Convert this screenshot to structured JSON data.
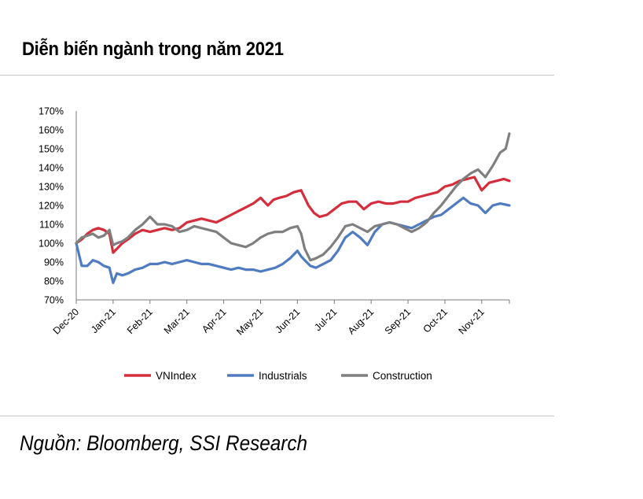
{
  "page": {
    "title": "Diễn biến ngành trong năm 2021",
    "source": "Nguồn: Bloomberg, SSI Research"
  },
  "colors": {
    "vnindex": "#d42e3c",
    "industrials": "#4f7bc1",
    "construction": "#7f7f7f",
    "axis": "#7a7a7a",
    "rule": "#c8c8c8"
  },
  "chart_data": {
    "type": "line",
    "title": "Diễn biến ngành trong năm 2021",
    "xlabel": "",
    "ylabel": "",
    "ylim": [
      70,
      170
    ],
    "y_ticks": [
      70,
      80,
      90,
      100,
      110,
      120,
      130,
      140,
      150,
      160,
      170
    ],
    "y_tick_labels": [
      "70%",
      "80%",
      "90%",
      "100%",
      "110%",
      "120%",
      "130%",
      "140%",
      "150%",
      "160%",
      "170%"
    ],
    "x_tick_labels": [
      "Dec-20",
      "Jan-21",
      "Feb-21",
      "Mar-21",
      "Apr-21",
      "May-21",
      "Jun-21",
      "Jul-21",
      "Aug-21",
      "Sep-21",
      "Oct-21",
      "Nov-21"
    ],
    "x_unit": "months since Dec-20",
    "xlim": [
      0,
      11.75
    ],
    "legend_position": "bottom",
    "grid": false,
    "series": [
      {
        "name": "VNIndex",
        "color": "#d42e3c",
        "x": [
          0,
          0.15,
          0.3,
          0.45,
          0.6,
          0.75,
          0.9,
          1.0,
          1.1,
          1.25,
          1.4,
          1.6,
          1.8,
          2.0,
          2.2,
          2.4,
          2.6,
          2.8,
          3.0,
          3.2,
          3.4,
          3.6,
          3.8,
          4.0,
          4.2,
          4.4,
          4.6,
          4.8,
          5.0,
          5.1,
          5.2,
          5.35,
          5.5,
          5.7,
          5.9,
          6.1,
          6.3,
          6.45,
          6.6,
          6.8,
          7.0,
          7.2,
          7.4,
          7.6,
          7.8,
          8.0,
          8.2,
          8.4,
          8.6,
          8.8,
          9.0,
          9.2,
          9.4,
          9.6,
          9.8,
          10.0,
          10.2,
          10.4,
          10.6,
          10.8,
          11.0,
          11.2,
          11.4,
          11.6,
          11.75
        ],
        "values": [
          100,
          102,
          105,
          107,
          108,
          107,
          105,
          95,
          97,
          100,
          102,
          105,
          107,
          106,
          107,
          108,
          107,
          108,
          111,
          112,
          113,
          112,
          111,
          113,
          115,
          117,
          119,
          121,
          124,
          122,
          120,
          123,
          124,
          125,
          127,
          128,
          120,
          116,
          114,
          115,
          118,
          121,
          122,
          122,
          118,
          121,
          122,
          121,
          121,
          122,
          122,
          124,
          125,
          126,
          127,
          130,
          131,
          133,
          134,
          135,
          128,
          132,
          133,
          134,
          133
        ]
      },
      {
        "name": "Industrials",
        "color": "#4f7bc1",
        "x": [
          0,
          0.15,
          0.3,
          0.45,
          0.6,
          0.75,
          0.9,
          1.0,
          1.1,
          1.25,
          1.4,
          1.6,
          1.8,
          2.0,
          2.2,
          2.4,
          2.6,
          2.8,
          3.0,
          3.2,
          3.4,
          3.6,
          3.8,
          4.0,
          4.2,
          4.4,
          4.6,
          4.8,
          5.0,
          5.2,
          5.4,
          5.6,
          5.8,
          6.0,
          6.1,
          6.2,
          6.35,
          6.5,
          6.7,
          6.9,
          7.1,
          7.3,
          7.5,
          7.7,
          7.9,
          8.1,
          8.3,
          8.5,
          8.7,
          8.9,
          9.1,
          9.3,
          9.5,
          9.7,
          9.9,
          10.1,
          10.3,
          10.5,
          10.7,
          10.9,
          11.1,
          11.3,
          11.5,
          11.75
        ],
        "values": [
          100,
          88,
          88,
          91,
          90,
          88,
          87,
          79,
          84,
          83,
          84,
          86,
          87,
          89,
          89,
          90,
          89,
          90,
          91,
          90,
          89,
          89,
          88,
          87,
          86,
          87,
          86,
          86,
          85,
          86,
          87,
          89,
          92,
          96,
          93,
          91,
          88,
          87,
          89,
          91,
          96,
          103,
          106,
          103,
          99,
          106,
          110,
          111,
          110,
          109,
          108,
          110,
          112,
          114,
          115,
          118,
          121,
          124,
          121,
          120,
          116,
          120,
          121,
          120
        ]
      },
      {
        "name": "Construction",
        "color": "#7f7f7f",
        "x": [
          0,
          0.15,
          0.3,
          0.45,
          0.6,
          0.75,
          0.9,
          1.0,
          1.1,
          1.25,
          1.4,
          1.6,
          1.8,
          2.0,
          2.2,
          2.4,
          2.6,
          2.8,
          3.0,
          3.2,
          3.4,
          3.6,
          3.8,
          4.0,
          4.2,
          4.4,
          4.6,
          4.8,
          5.0,
          5.2,
          5.4,
          5.6,
          5.8,
          6.0,
          6.1,
          6.2,
          6.35,
          6.5,
          6.7,
          6.9,
          7.1,
          7.3,
          7.5,
          7.7,
          7.9,
          8.1,
          8.3,
          8.5,
          8.7,
          8.9,
          9.1,
          9.3,
          9.5,
          9.7,
          9.9,
          10.1,
          10.3,
          10.5,
          10.7,
          10.9,
          11.1,
          11.3,
          11.5,
          11.65,
          11.75
        ],
        "values": [
          100,
          103,
          104,
          105,
          103,
          104,
          107,
          99,
          100,
          101,
          103,
          107,
          110,
          114,
          110,
          110,
          109,
          106,
          107,
          109,
          108,
          107,
          106,
          103,
          100,
          99,
          98,
          100,
          103,
          105,
          106,
          106,
          108,
          109,
          105,
          97,
          91,
          92,
          94,
          98,
          103,
          109,
          110,
          108,
          106,
          109,
          110,
          111,
          110,
          108,
          106,
          108,
          111,
          116,
          120,
          125,
          130,
          134,
          137,
          139,
          135,
          141,
          148,
          150,
          158
        ]
      }
    ]
  }
}
